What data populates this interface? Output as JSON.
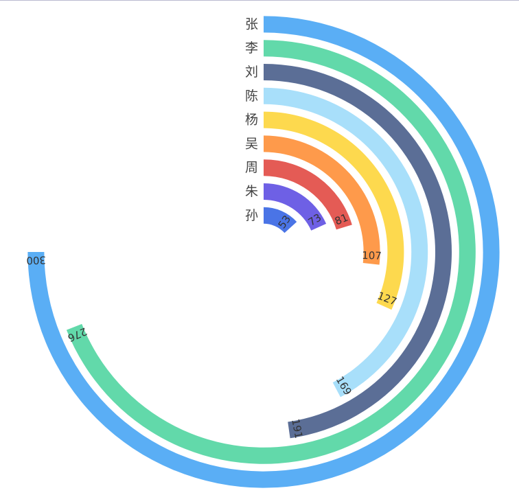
{
  "chart_data": {
    "type": "bar",
    "subtype": "radial-bar",
    "max": 400,
    "categories": [
      "张",
      "李",
      "刘",
      "陈",
      "杨",
      "吴",
      "周",
      "朱",
      "孙"
    ],
    "values": [
      300,
      276,
      191,
      169,
      127,
      107,
      81,
      73,
      53
    ],
    "colors": [
      "#5aaef5",
      "#62d9aa",
      "#5b6e96",
      "#a8dffa",
      "#fdd94e",
      "#fe9a4b",
      "#e45b55",
      "#6e60e5",
      "#4a74e6"
    ],
    "grid": false,
    "legend": "none"
  }
}
